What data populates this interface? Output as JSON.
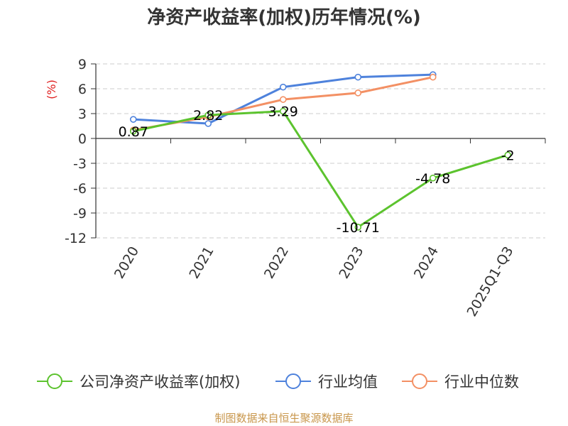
{
  "chart_data": {
    "type": "line",
    "title": "净资产收益率(加权)历年情况(%)",
    "ylabel": "(%)",
    "categories": [
      "2020",
      "2021",
      "2022",
      "2023",
      "2024",
      "2025Q1-Q3"
    ],
    "yticks": [
      "9",
      "6",
      "3",
      "0",
      "-3",
      "-6",
      "-9",
      "-12"
    ],
    "ylim": [
      -12,
      9
    ],
    "grid": true,
    "legend_position": "bottom",
    "series": [
      {
        "name": "公司净资产收益率(加权)",
        "color": "#5cc32e",
        "values": [
          0.87,
          2.82,
          3.29,
          -10.71,
          -4.78,
          -2
        ],
        "labels": [
          "0.87",
          "2.82",
          "3.29",
          "-10.71",
          "-4.78",
          "-2"
        ]
      },
      {
        "name": "行业均值",
        "color": "#4e82dc",
        "values": [
          2.3,
          1.8,
          6.2,
          7.4,
          7.7,
          null
        ]
      },
      {
        "name": "行业中位数",
        "color": "#f39064",
        "values": [
          1.0,
          2.6,
          4.7,
          5.5,
          7.4,
          null
        ]
      }
    ]
  },
  "source_note": "制图数据来自恒生聚源数据库"
}
